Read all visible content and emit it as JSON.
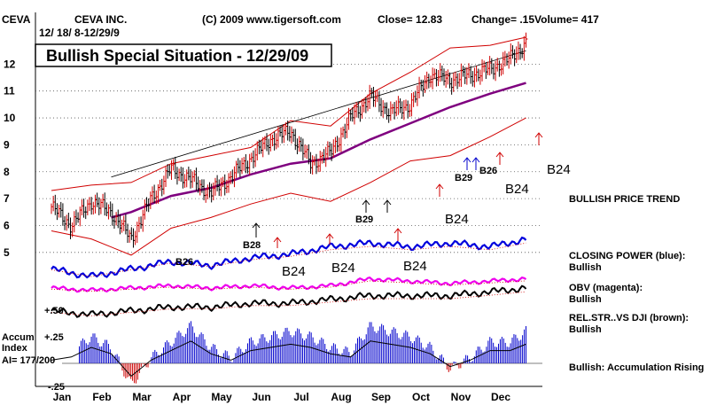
{
  "header": {
    "ticker": "CEVA",
    "company": "CEVA INC.",
    "date_range": "12/ 18/ 8-12/29/9",
    "copyright": "(C) 2009 www.tigersoft.com",
    "close": "Close=  12.83",
    "change": "Change= .15",
    "volume": "Volume= 417"
  },
  "title_box": "Bullish Special Situation - 12/29/09",
  "right_labels": {
    "price_trend": "BULLISH PRICE TREND",
    "closing_power_title": "CLOSING POWER (blue):",
    "closing_power_value": "Bullish",
    "obv_title": "OBV (magenta):",
    "obv_value": "Bullish",
    "relstr_title": "REL.STR..VS DJI (brown):",
    "relstr_value": "Bullish",
    "accum_status": "Bullish: Accumulation Rising"
  },
  "accum_labels": {
    "title1": "Accum",
    "title2": "Index",
    "ai": "AI= 177/200",
    "plus50": "+.50",
    "plus25": "+.25",
    "minus25": "-.25"
  },
  "signals": {
    "b24_right": "B24",
    "b24_price": "B24",
    "b24_price2": "B24",
    "b24_cp1": "B24",
    "b24_cp2": "B24",
    "b24_cp3": "B24",
    "b29_a": "B29",
    "b29_b": "B29",
    "b26_a": "B26",
    "b26_b": "B26",
    "b28": "B28"
  },
  "colors": {
    "price": "#000000",
    "up_day": "#d00000",
    "band": "#d00000",
    "ma": "#7f007f",
    "closing_power": "#0000dd",
    "obv": "#ee00ee",
    "relstr": "#000000",
    "accum_pos": "#0000cc",
    "accum_neg": "#cc0000"
  },
  "chart_data": {
    "type": "line",
    "xlabel": "",
    "ylabel": "",
    "categories": [
      "Jan",
      "Feb",
      "Mar",
      "Apr",
      "May",
      "Jun",
      "Jul",
      "Aug",
      "Sep",
      "Oct",
      "Nov",
      "Dec"
    ],
    "y_ticks": [
      5,
      6,
      7,
      8,
      9,
      10,
      11,
      12
    ],
    "ylim": [
      4.5,
      13.0
    ],
    "grid": true,
    "series": [
      {
        "key": "close",
        "x": [
          0,
          0.5,
          1,
          1.5,
          2,
          2.5,
          3,
          3.5,
          4,
          4.5,
          5,
          5.5,
          6,
          6.5,
          7,
          7.5,
          8,
          8.5,
          9,
          9.5,
          10,
          10.5,
          11,
          11.5,
          11.9
        ],
        "values": [
          6.7,
          6.0,
          6.9,
          6.5,
          5.5,
          7.0,
          8.1,
          7.7,
          7.2,
          7.8,
          8.5,
          9.2,
          9.5,
          8.3,
          8.7,
          10.0,
          10.8,
          10.2,
          10.5,
          11.6,
          11.4,
          11.6,
          11.8,
          12.2,
          12.8
        ]
      },
      {
        "key": "moving_average",
        "x": [
          1.5,
          2,
          3,
          4,
          5,
          6,
          7,
          8,
          9,
          10,
          11,
          11.9
        ],
        "values": [
          6.3,
          6.5,
          7.1,
          7.4,
          7.9,
          8.3,
          8.5,
          9.2,
          9.8,
          10.4,
          10.9,
          11.3
        ]
      },
      {
        "key": "upper_band",
        "x": [
          0,
          1,
          2,
          3,
          4,
          5,
          6,
          7,
          8,
          9,
          10,
          11,
          11.9
        ],
        "values": [
          7.3,
          7.5,
          7.6,
          8.3,
          8.6,
          8.9,
          9.9,
          9.7,
          10.9,
          11.7,
          12.6,
          12.7,
          13.0
        ]
      },
      {
        "key": "lower_band",
        "x": [
          0,
          1,
          2,
          3,
          4,
          5,
          6,
          7,
          8,
          9,
          10,
          11,
          11.9
        ],
        "values": [
          5.8,
          5.5,
          4.9,
          5.9,
          6.3,
          6.8,
          7.2,
          6.9,
          7.6,
          8.4,
          8.6,
          9.3,
          10.0
        ]
      }
    ],
    "trendline": {
      "x": [
        1.5,
        11.9
      ],
      "values": [
        7.8,
        12.5
      ]
    },
    "indicators": {
      "closing_power": {
        "x": [
          0,
          1,
          2,
          3,
          4,
          5,
          6,
          7,
          8,
          9,
          10,
          11,
          11.9
        ],
        "values": [
          0.2,
          0.0,
          0.2,
          0.4,
          0.3,
          0.5,
          0.6,
          0.8,
          0.9,
          0.8,
          0.9,
          0.8,
          1.0
        ]
      },
      "obv": {
        "x": [
          0,
          1,
          2,
          3,
          4,
          5,
          6,
          7,
          8,
          9,
          10,
          11,
          11.9
        ],
        "values": [
          0.5,
          0.4,
          0.5,
          0.6,
          0.5,
          0.6,
          0.5,
          0.6,
          0.9,
          0.8,
          0.7,
          0.8,
          0.9
        ]
      },
      "rel_strength": {
        "x": [
          0,
          1,
          2,
          3,
          4,
          5,
          6,
          7,
          8,
          9,
          10,
          11,
          11.9
        ],
        "values": [
          0.4,
          0.3,
          0.4,
          0.5,
          0.5,
          0.6,
          0.6,
          0.7,
          0.8,
          0.8,
          0.8,
          0.9,
          1.0
        ]
      },
      "accumulation_index": {
        "x": [
          0,
          0.5,
          1,
          1.5,
          2,
          2.5,
          3,
          3.5,
          4,
          4.5,
          5,
          5.5,
          6,
          6.5,
          7,
          7.5,
          8,
          8.5,
          9,
          9.5,
          10,
          10.5,
          11,
          11.5,
          11.9
        ],
        "values": [
          0.05,
          0.1,
          0.25,
          0.15,
          -0.2,
          0.05,
          0.2,
          0.35,
          0.15,
          0.05,
          0.2,
          0.25,
          0.3,
          0.25,
          0.15,
          0.1,
          0.35,
          0.3,
          0.25,
          0.15,
          -0.05,
          0.05,
          0.2,
          0.2,
          0.3
        ]
      }
    }
  }
}
